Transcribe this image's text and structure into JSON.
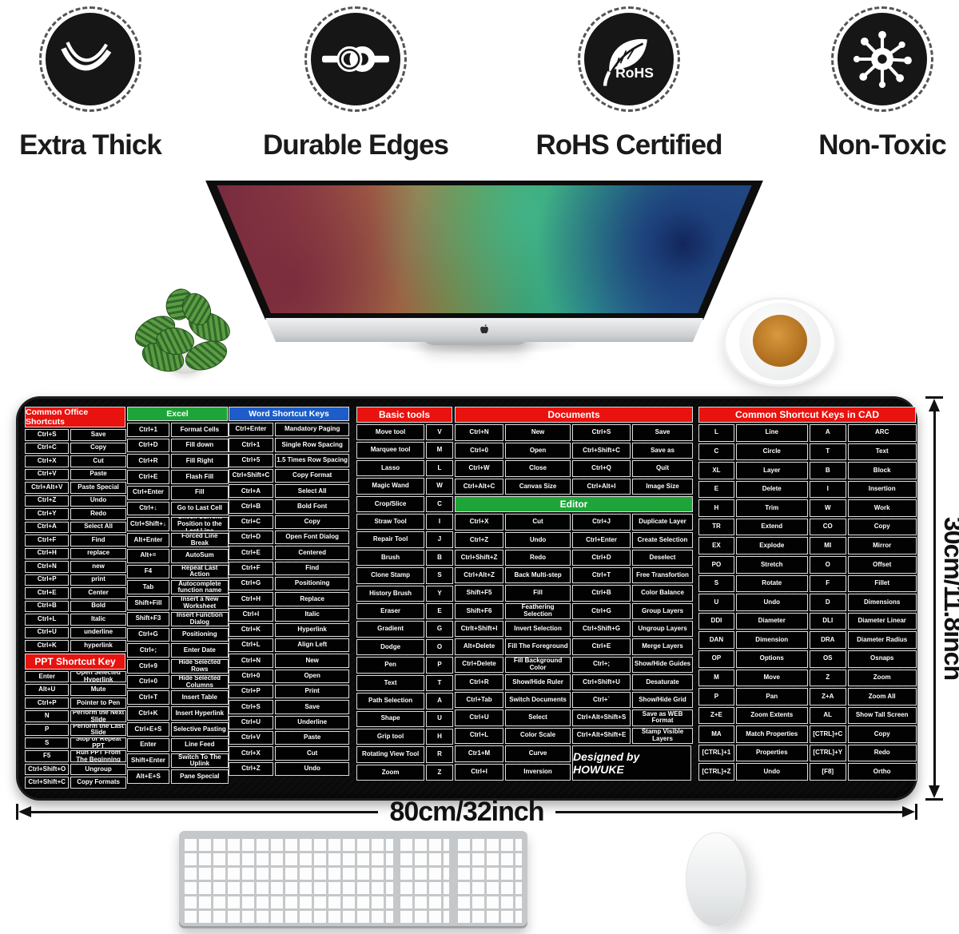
{
  "features": [
    {
      "label": "Extra Thick",
      "icon": "thickness-wave-icon"
    },
    {
      "label": "Durable Edges",
      "icon": "rope-knot-icon"
    },
    {
      "label": "RoHS Certified",
      "icon": "rohs-leaf-icon",
      "icon_text": "RoHS"
    },
    {
      "label": "Non-Toxic",
      "icon": "molecule-icon"
    }
  ],
  "dimensions": {
    "width_label": "80cm/32inch",
    "height_label": "30cm/11.8inch"
  },
  "colors": {
    "header_red": "#e8120e",
    "header_green": "#1ea53a",
    "header_blue": "#1d5cc9",
    "pad_black": "#0b0b0b"
  },
  "tables": {
    "office": {
      "title": "Common Office Shortcuts",
      "rows": [
        [
          "Ctrl+S",
          "Save"
        ],
        [
          "Ctrl+C",
          "Copy"
        ],
        [
          "Ctrl+X",
          "Cut"
        ],
        [
          "Ctrl+V",
          "Paste"
        ],
        [
          "Ctrl+Alt+V",
          "Paste Special"
        ],
        [
          "Ctrl+Z",
          "Undo"
        ],
        [
          "Ctrl+Y",
          "Redo"
        ],
        [
          "Ctrl+A",
          "Select All"
        ],
        [
          "Ctrl+F",
          "Find"
        ],
        [
          "Ctrl+H",
          "replace"
        ],
        [
          "Ctrl+N",
          "new"
        ],
        [
          "Ctrl+P",
          "print"
        ],
        [
          "Ctrl+E",
          "Center"
        ],
        [
          "Ctrl+B",
          "Bold"
        ],
        [
          "Ctrl+L",
          "Italic"
        ],
        [
          "Ctrl+U",
          "underline"
        ],
        [
          "Ctrl+K",
          "hyperlink"
        ]
      ],
      "ppt_title": "PPT Shortcut Key",
      "ppt_rows": [
        [
          "Enter",
          "Open Selected Hyperlink"
        ],
        [
          "Alt+U",
          "Mute"
        ],
        [
          "Ctrl+P",
          "Pointer to Pen"
        ],
        [
          "N",
          "Perform the Next Slide"
        ],
        [
          "P",
          "Perform the Last Slide"
        ],
        [
          "S",
          "Stop or Repeat PPT"
        ],
        [
          "F5",
          "Run PPT From The Beginning"
        ],
        [
          "Ctrl+Shift+O",
          "Ungroup"
        ],
        [
          "Ctrl+Shift+C",
          "Copy Formats"
        ]
      ]
    },
    "excel": {
      "title": "Excel",
      "rows": [
        [
          "Ctrl+1",
          "Format Cells"
        ],
        [
          "Ctrl+D",
          "Fill down"
        ],
        [
          "Ctrl+R",
          "Fill Right"
        ],
        [
          "Ctrl+E",
          "Flash Fill"
        ],
        [
          "Ctrl+Enter",
          "Fill"
        ],
        [
          "Ctrl+↓",
          "Go to Last Cell"
        ],
        [
          "Ctrl+Shift+↓",
          "Check Current Position to the Last Line"
        ],
        [
          "Alt+Enter",
          "Forced Line Break"
        ],
        [
          "Alt+=",
          "AutoSum"
        ],
        [
          "F4",
          "Repeat Last Action"
        ],
        [
          "Tab",
          "Autocomplete function name"
        ],
        [
          "Shift+Fill",
          "Insert a New Worksheet"
        ],
        [
          "Shift+F3",
          "Insert Function Dialog"
        ],
        [
          "Ctrl+G",
          "Positioning"
        ],
        [
          "Ctrl+;",
          "Enter Date"
        ],
        [
          "Ctrl+9",
          "Hide Selected Rows"
        ],
        [
          "Ctrl+0",
          "Hide Selected Columns"
        ],
        [
          "Ctrl+T",
          "Insert Table"
        ],
        [
          "Ctrl+K",
          "Insert Hyperlink"
        ],
        [
          "Ctrl+E+S",
          "Selective Pasting"
        ],
        [
          "Enter",
          "Line Feed"
        ],
        [
          "Shift+Enter",
          "Switch To The Uplink"
        ],
        [
          "Alt+E+S",
          "Pane Special"
        ]
      ]
    },
    "word": {
      "title": "Word Shortcut Keys",
      "rows": [
        [
          "Ctrl+Enter",
          "Mandatory Paging"
        ],
        [
          "Ctrl+1",
          "Single Row Spacing"
        ],
        [
          "Ctrl+5",
          "1.5 Times Row Spacing"
        ],
        [
          "Ctrl+Shift+C",
          "Copy Format"
        ],
        [
          "Ctrl+A",
          "Select All"
        ],
        [
          "Ctrl+B",
          "Bold Font"
        ],
        [
          "Ctrl+C",
          "Copy"
        ],
        [
          "Ctrl+D",
          "Open Font Dialog"
        ],
        [
          "Ctrl+E",
          "Centered"
        ],
        [
          "Ctrl+F",
          "Find"
        ],
        [
          "Ctrl+G",
          "Positioning"
        ],
        [
          "Ctrl+H",
          "Replace"
        ],
        [
          "Ctrl+I",
          "Italic"
        ],
        [
          "Ctrl+K",
          "Hyperlink"
        ],
        [
          "Ctrl+L",
          "Align Left"
        ],
        [
          "Ctrl+N",
          "New"
        ],
        [
          "Ctrl+0",
          "Open"
        ],
        [
          "Ctrl+P",
          "Print"
        ],
        [
          "Ctrl+S",
          "Save"
        ],
        [
          "Ctrl+U",
          "Underline"
        ],
        [
          "Ctrl+V",
          "Paste"
        ],
        [
          "Ctrl+X",
          "Cut"
        ],
        [
          "Ctrl+Z",
          "Undo"
        ]
      ]
    },
    "basic": {
      "title": "Basic tools",
      "rows": [
        [
          "Move tool",
          "V"
        ],
        [
          "Marquee tool",
          "M"
        ],
        [
          "Lasso",
          "L"
        ],
        [
          "Magic Wand",
          "W"
        ],
        [
          "Crop/Slice",
          "C"
        ],
        [
          "Straw Tool",
          "I"
        ],
        [
          "Repair Tool",
          "J"
        ],
        [
          "Brush",
          "B"
        ],
        [
          "Clone Stamp",
          "S"
        ],
        [
          "History Brush",
          "Y"
        ],
        [
          "Eraser",
          "E"
        ],
        [
          "Gradient",
          "G"
        ],
        [
          "Dodge",
          "O"
        ],
        [
          "Pen",
          "P"
        ],
        [
          "Text",
          "T"
        ],
        [
          "Path Selection",
          "A"
        ],
        [
          "Shape",
          "U"
        ],
        [
          "Grip tool",
          "H"
        ],
        [
          "Rotating View Tool",
          "R"
        ],
        [
          "Zoom",
          "Z"
        ]
      ]
    },
    "documents": {
      "title": "Documents",
      "rows": [
        [
          "Ctrl+N",
          "New",
          "Ctrl+S",
          "Save"
        ],
        [
          "Ctrl+0",
          "Open",
          "Ctrl+Shift+C",
          "Save as"
        ],
        [
          "Ctrl+W",
          "Close",
          "Ctrl+Q",
          "Quit"
        ],
        [
          "Ctrl+Alt+C",
          "Canvas Size",
          "Ctrl+Alt+I",
          "Image Size"
        ]
      ],
      "editor_title": "Editor",
      "editor_rows": [
        [
          "Ctrl+X",
          "Cut",
          "Ctrl+J",
          "Duplicate Layer"
        ],
        [
          "Ctrl+Z",
          "Undo",
          "Ctrl+Enter",
          "Create Selection"
        ],
        [
          "Ctrl+Shift+Z",
          "Redo",
          "Ctrl+D",
          "Deselect"
        ],
        [
          "Ctrl+Alt+Z",
          "Back Multi-step",
          "Ctrl+T",
          "Free Transfortion"
        ],
        [
          "Shift+F5",
          "Fill",
          "Ctrl+B",
          "Color Balance"
        ],
        [
          "Shift+F6",
          "Feathering Selection",
          "Ctrl+G",
          "Group Layers"
        ],
        [
          "Ctrlt+Shift+I",
          "Invert Selection",
          "Ctrl+Shift+G",
          "Ungroup Layers"
        ],
        [
          "Alt+Delete",
          "Fill The Foreground",
          "Ctrl+E",
          "Merge Layers"
        ],
        [
          "Ctrl+Delete",
          "Fill Background Color",
          "Ctrl+;",
          "Show/Hide Guides"
        ],
        [
          "Ctrl+R",
          "Show/Hide Ruler",
          "Ctrl+Shift+U",
          "Desaturate"
        ],
        [
          "Ctrl+Tab",
          "Switch Documents",
          "Ctrl+`",
          "Show/Hide Grid"
        ],
        [
          "Ctrl+U",
          "Select",
          "Ctrl+Alt+Shift+S",
          "Save as WEB Format"
        ],
        [
          "Ctrl+L",
          "Color Scale",
          "Ctrl+Alt+Shift+E",
          "Stamp Visible Layers"
        ]
      ],
      "tail_rows": [
        [
          "Ctr1+M",
          "Curve"
        ],
        [
          "Ctrl+I",
          "Inversion"
        ]
      ],
      "brand": "Designed by HOWUKE"
    },
    "cad": {
      "title": "Common Shortcut Keys in CAD",
      "rows": [
        [
          "L",
          "Line",
          "A",
          "ARC"
        ],
        [
          "C",
          "Circle",
          "T",
          "Text"
        ],
        [
          "XL",
          "Layer",
          "B",
          "Block"
        ],
        [
          "E",
          "Delete",
          "I",
          "Insertion"
        ],
        [
          "H",
          "Trim",
          "W",
          "Work"
        ],
        [
          "TR",
          "Extend",
          "CO",
          "Copy"
        ],
        [
          "EX",
          "Explode",
          "MI",
          "Mirror"
        ],
        [
          "PO",
          "Stretch",
          "O",
          "Offset"
        ],
        [
          "S",
          "Rotate",
          "F",
          "Fillet"
        ],
        [
          "U",
          "Undo",
          "D",
          "Dimensions"
        ],
        [
          "DDI",
          "Diameter",
          "DLI",
          "Diameter Linear"
        ],
        [
          "DAN",
          "Dimension",
          "DRA",
          "Diameter Radius"
        ],
        [
          "OP",
          "Options",
          "OS",
          "Osnaps"
        ],
        [
          "M",
          "Move",
          "Z",
          "Zoom"
        ],
        [
          "P",
          "Pan",
          "Z+A",
          "Zoom All"
        ],
        [
          "Z+E",
          "Zoom Extents",
          "AL",
          "Show Tall Screen"
        ],
        [
          "MA",
          "Match Properties",
          "[CTRL]+C",
          "Copy"
        ],
        [
          "[CTRL]+1",
          "Properties",
          "[CTRL]+Y",
          "Redo"
        ],
        [
          "[CTRL]+Z",
          "Undo",
          "[F8]",
          "Ortho"
        ]
      ]
    }
  }
}
